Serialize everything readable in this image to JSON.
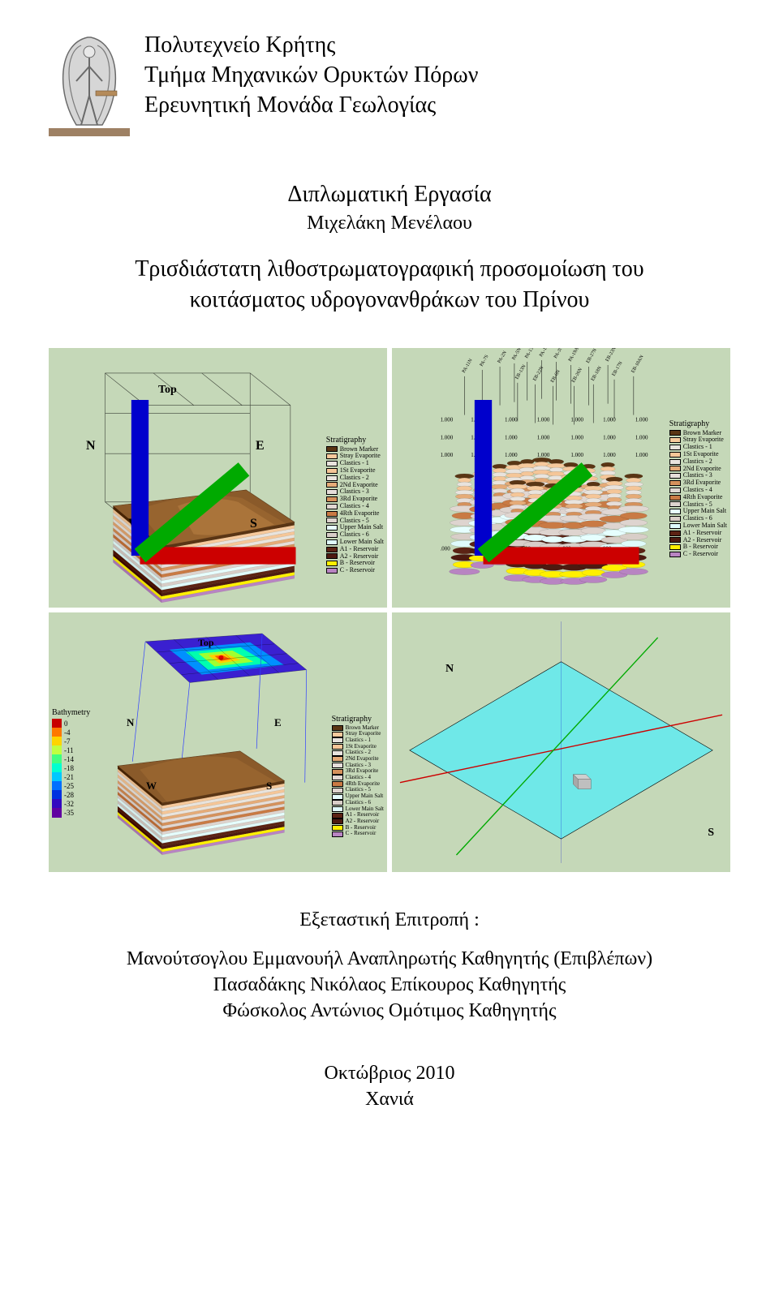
{
  "inst": {
    "line1": "Πολυτεχνείο Κρήτης",
    "line2": "Τμήμα Μηχανικών Ορυκτών Πόρων",
    "line3": "Ερευνητική Μονάδα Γεωλογίας"
  },
  "center": {
    "heading": "Διπλωματική Εργασία",
    "author": "Μιχελάκη Μενέλαου"
  },
  "title": {
    "line1": "Τρισδιάστατη λιθοστρωματογραφική προσομοίωση του",
    "line2": "κοιτάσματος υδρογονανθράκων του Πρίνου"
  },
  "committee": {
    "heading": "Εξεταστική Επιτροπή :",
    "m1": "Μανούτσογλου Εμμανουήλ Αναπληρωτής Καθηγητής (Επιβλέπων)",
    "m2": "Πασαδάκης Νικόλαος Επίκουρος Καθηγητής",
    "m3": "Φώσκολος Αντώνιος Ομότιμος Καθηγητής"
  },
  "footer": {
    "date": "Οκτώβριος 2010",
    "place": "Χανιά"
  },
  "panels": {
    "bg": "#c5d8b8",
    "strat_title": "Stratigraphy",
    "strat_layers": [
      {
        "label": "Brown Marker",
        "color": "#5a3514"
      },
      {
        "label": "Stray Evaporite",
        "color": "#f6c99c"
      },
      {
        "label": "Clastics - 1",
        "color": "#e8e3dd"
      },
      {
        "label": "1St Evaporite",
        "color": "#f5c698"
      },
      {
        "label": "Clastics - 2",
        "color": "#e9e4de"
      },
      {
        "label": "2Nd Evaporite",
        "color": "#e5ab78"
      },
      {
        "label": "Clastics - 3",
        "color": "#e6deda"
      },
      {
        "label": "3Rd Evaporite",
        "color": "#d5915c"
      },
      {
        "label": "Clastics - 4",
        "color": "#e1d7d2"
      },
      {
        "label": "4Rth Evaporite",
        "color": "#c97a44"
      },
      {
        "label": "Clastics - 5",
        "color": "#ded4cf"
      },
      {
        "label": "Upper Main Salt",
        "color": "#e6fefe"
      },
      {
        "label": "Clastics - 6",
        "color": "#d8cec8"
      },
      {
        "label": "Lower Main Salt",
        "color": "#dffbfb"
      },
      {
        "label": "A1 - Reservoir",
        "color": "#5c2314"
      },
      {
        "label": "A2 - Reservoir",
        "color": "#4d1a10"
      },
      {
        "label": "B - Reservoir",
        "color": "#fff000"
      },
      {
        "label": "C - Reservoir",
        "color": "#b884c2"
      }
    ],
    "bathy_title": "Bathymetry",
    "bathy_ticks": [
      {
        "v": "0",
        "c": "#c80000"
      },
      {
        "v": "-4",
        "c": "#ff7800"
      },
      {
        "v": "-7",
        "c": "#ffd400"
      },
      {
        "v": "-11",
        "c": "#c0ff40"
      },
      {
        "v": "-14",
        "c": "#40ff80"
      },
      {
        "v": "-18",
        "c": "#00ffd0"
      },
      {
        "v": "-21",
        "c": "#00c8ff"
      },
      {
        "v": "-25",
        "c": "#0070ff"
      },
      {
        "v": "-28",
        "c": "#0030e0"
      },
      {
        "v": "-32",
        "c": "#3208c0"
      },
      {
        "v": "-35",
        "c": "#6000a0"
      }
    ],
    "top_label": "Top",
    "compass": {
      "N": "N",
      "E": "E",
      "S": "S",
      "W": "W"
    },
    "wells_depth": [
      "1.000",
      "1.000",
      "1.000",
      "1.000",
      "1.000",
      "1.000",
      "1.000"
    ],
    "well_names": [
      "PA-11N",
      "PA-7S",
      "PA-2N",
      "PA-5N",
      "PA-13N",
      "PA-12N",
      "PA-3N",
      "PA-19AN",
      "EB-27N",
      "EB-23N",
      "EB-13N",
      "EB-22N",
      "EB-6N",
      "EB-26N",
      "EB-18N",
      "EB-17N",
      "EB-10AN"
    ]
  }
}
